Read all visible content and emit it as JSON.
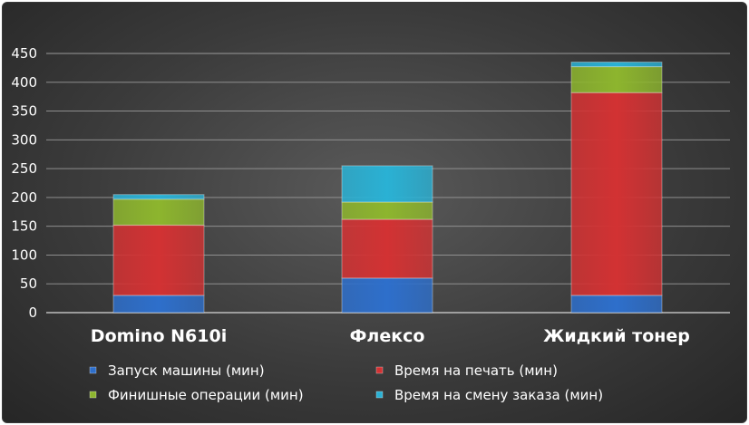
{
  "chart_data": {
    "type": "bar",
    "stacked": true,
    "categories": [
      "Domino N610i",
      "Флексо",
      "Жидкий тонер"
    ],
    "series": [
      {
        "name": "Запуск машины (мин)",
        "color": "#2e6fcb",
        "values": [
          30,
          60,
          30
        ]
      },
      {
        "name": "Время на печать (мин)",
        "color": "#d23233",
        "values": [
          122,
          102,
          352
        ]
      },
      {
        "name": "Финишные операции (мин)",
        "color": "#8db52e",
        "values": [
          45,
          30,
          45
        ]
      },
      {
        "name": "Время на смену заказа (мин)",
        "color": "#2ab1d4",
        "values": [
          8,
          63,
          8
        ]
      }
    ],
    "yticks": [
      "0",
      "50",
      "100",
      "150",
      "200",
      "250",
      "300",
      "350",
      "400",
      "450"
    ],
    "ylim": [
      0,
      450
    ],
    "grid": true,
    "legend": "bottom"
  }
}
